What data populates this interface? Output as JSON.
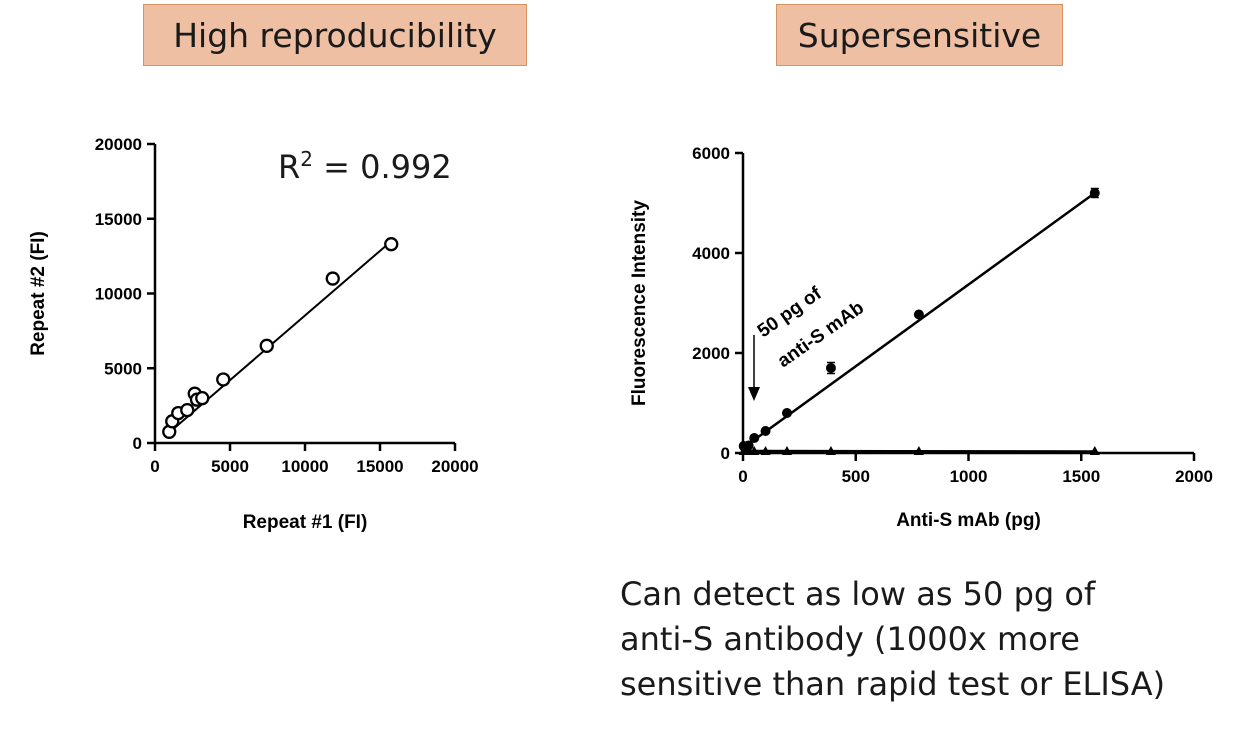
{
  "titles": {
    "left": "High reproducibility",
    "right": "Supersensitive"
  },
  "caption": {
    "lines": [
      "Can detect as low as 50 pg of",
      "anti-S antibody (1000x more",
      "sensitive than rapid test or ELISA)"
    ]
  },
  "chart_data": [
    {
      "type": "scatter",
      "title": "High reproducibility",
      "xlabel": "Repeat #1 (FI)",
      "ylabel": "Repeat #2 (FI)",
      "xlim": [
        0,
        20000
      ],
      "ylim": [
        0,
        20000
      ],
      "xticks": [
        "0",
        "5000",
        "10000",
        "15000",
        "20000"
      ],
      "yticks": [
        "0",
        "5000",
        "10000",
        "15000",
        "20000"
      ],
      "annotation": {
        "base": "R",
        "sup": "2",
        "rest": " = 0.992"
      },
      "marker": "open-circle",
      "points": [
        {
          "x": 950,
          "y": 750
        },
        {
          "x": 1150,
          "y": 1450
        },
        {
          "x": 1550,
          "y": 2000
        },
        {
          "x": 2150,
          "y": 2200
        },
        {
          "x": 2650,
          "y": 3300
        },
        {
          "x": 2800,
          "y": 2900
        },
        {
          "x": 3150,
          "y": 3000
        },
        {
          "x": 4550,
          "y": 4250
        },
        {
          "x": 7450,
          "y": 6500
        },
        {
          "x": 11850,
          "y": 11000
        },
        {
          "x": 15750,
          "y": 13300
        }
      ],
      "fit_line": {
        "x": [
          950,
          15750
        ],
        "y": [
          700,
          13500
        ]
      }
    },
    {
      "type": "scatter",
      "title": "Supersensitive",
      "xlabel": "Anti-S mAb (pg)",
      "ylabel": "Fluorescence Intensity",
      "xlim": [
        0,
        2000
      ],
      "ylim": [
        0,
        6000
      ],
      "xticks": [
        "0",
        "500",
        "1000",
        "1500",
        "2000"
      ],
      "yticks": [
        "0",
        "2000",
        "4000",
        "6000"
      ],
      "annotation_lines": [
        "50 pg of",
        "anti-S mAb"
      ],
      "series": [
        {
          "marker": "filled-circle",
          "points": [
            {
              "x": 3,
              "y": 140
            },
            {
              "x": 6,
              "y": 120
            },
            {
              "x": 12,
              "y": 100
            },
            {
              "x": 25,
              "y": 150
            },
            {
              "x": 50,
              "y": 300
            },
            {
              "x": 100,
              "y": 440
            },
            {
              "x": 195,
              "y": 800
            },
            {
              "x": 390,
              "y": 1700,
              "err": 110
            },
            {
              "x": 780,
              "y": 2770
            },
            {
              "x": 1560,
              "y": 5200,
              "err": 90
            }
          ],
          "fit_line": {
            "x": [
              0,
              1560
            ],
            "y": [
              100,
              5200
            ]
          }
        },
        {
          "marker": "filled-triangle",
          "points": [
            {
              "x": 3,
              "y": 40
            },
            {
              "x": 6,
              "y": 40
            },
            {
              "x": 12,
              "y": 40
            },
            {
              "x": 25,
              "y": 40
            },
            {
              "x": 50,
              "y": 40
            },
            {
              "x": 100,
              "y": 40
            },
            {
              "x": 195,
              "y": 40
            },
            {
              "x": 390,
              "y": 40
            },
            {
              "x": 780,
              "y": 40
            },
            {
              "x": 1560,
              "y": 40
            }
          ],
          "fit_line": {
            "x": [
              0,
              1560
            ],
            "y": [
              40,
              30
            ]
          }
        }
      ]
    }
  ]
}
